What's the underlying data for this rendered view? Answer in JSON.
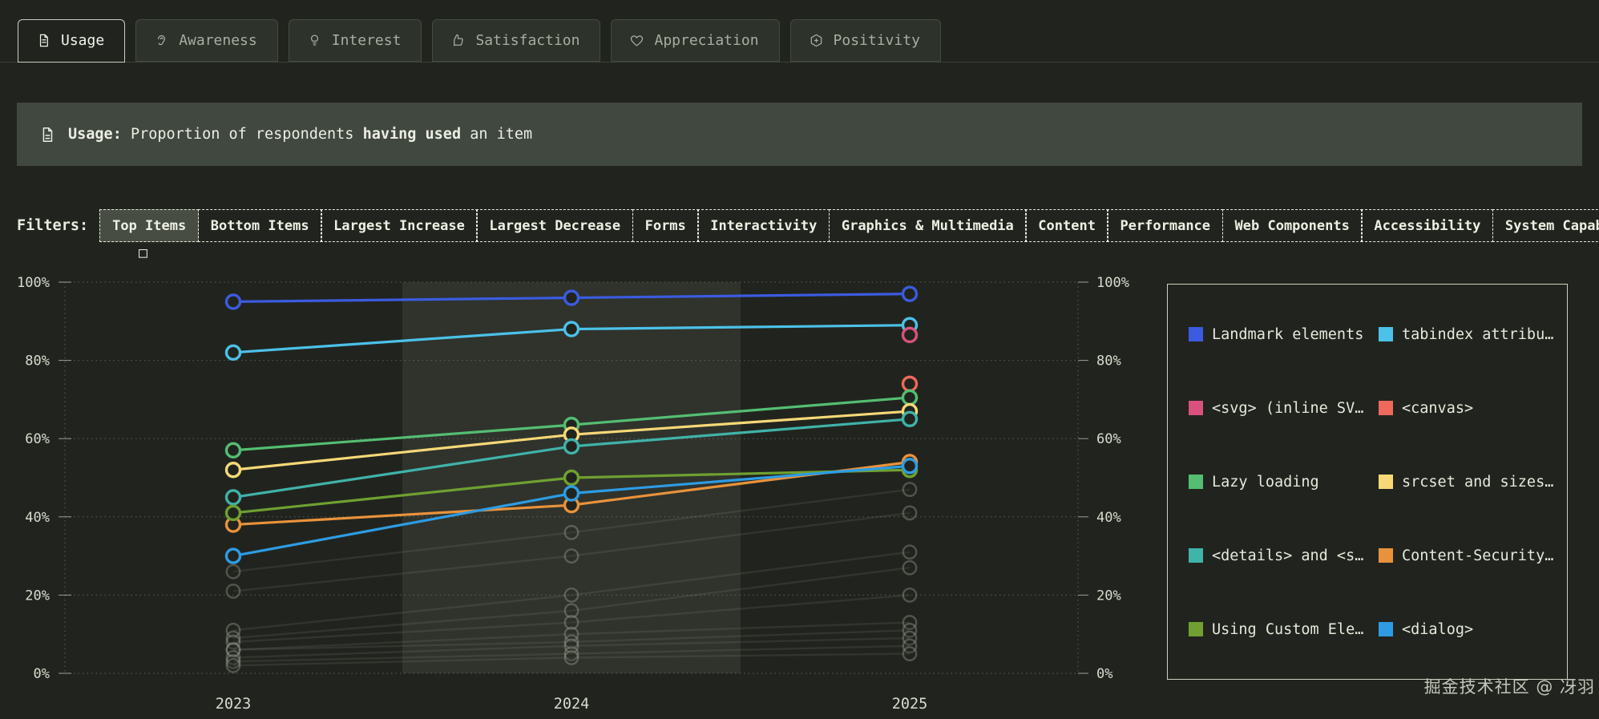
{
  "tabs": {
    "items": [
      {
        "label": "Usage",
        "icon": "document-icon",
        "active": true
      },
      {
        "label": "Awareness",
        "icon": "ear-icon",
        "active": false
      },
      {
        "label": "Interest",
        "icon": "lightbulb-icon",
        "active": false
      },
      {
        "label": "Satisfaction",
        "icon": "thumbs-up-icon",
        "active": false
      },
      {
        "label": "Appreciation",
        "icon": "heart-icon",
        "active": false
      },
      {
        "label": "Positivity",
        "icon": "hexagon-plus-icon",
        "active": false
      }
    ]
  },
  "banner": {
    "title": "Usage:",
    "desc_pre": " Proportion of respondents ",
    "desc_bold": "having used",
    "desc_post": " an item"
  },
  "filters": {
    "label": "Filters:",
    "overflow_glyph": "□",
    "items": [
      {
        "label": "Top Items",
        "active": true
      },
      {
        "label": "Bottom Items",
        "active": false
      },
      {
        "label": "Largest Increase",
        "active": false
      },
      {
        "label": "Largest Decrease",
        "active": false
      },
      {
        "label": "Forms",
        "active": false
      },
      {
        "label": "Interactivity",
        "active": false
      },
      {
        "label": "Graphics & Multimedia",
        "active": false
      },
      {
        "label": "Content",
        "active": false
      },
      {
        "label": "Performance",
        "active": false
      },
      {
        "label": "Web Components",
        "active": false
      },
      {
        "label": "Accessibility",
        "active": false
      },
      {
        "label": "System Capabilities",
        "active": false
      }
    ]
  },
  "chart_data": {
    "type": "line",
    "x_labels": [
      "2023",
      "2024",
      "2025"
    ],
    "ylim": [
      0,
      100
    ],
    "ytick_step": 20,
    "ytick_labels": [
      "0%",
      "20%",
      "40%",
      "60%",
      "80%",
      "100%"
    ],
    "y_axis_sides": [
      "left",
      "right"
    ],
    "highlighted_column": "2024",
    "legend_position": "right",
    "series": [
      {
        "name": "Landmark elements",
        "color": "#3b5be0",
        "values": [
          95,
          96,
          97
        ]
      },
      {
        "name": "tabindex attribu…",
        "color": "#4cc1e9",
        "values": [
          82,
          88,
          89
        ]
      },
      {
        "name": "<svg> (inline SV…",
        "color": "#d9517e",
        "values": [
          null,
          null,
          86.5
        ]
      },
      {
        "name": "<canvas>",
        "color": "#ef685c",
        "values": [
          null,
          null,
          74
        ]
      },
      {
        "name": "Lazy loading",
        "color": "#54be72",
        "values": [
          57,
          63.5,
          70.5
        ]
      },
      {
        "name": "srcset and sizes…",
        "color": "#f6d877",
        "values": [
          52,
          61,
          67
        ]
      },
      {
        "name": "<details> and <s…",
        "color": "#40b3aa",
        "values": [
          45,
          58,
          65
        ]
      },
      {
        "name": "Content-Security…",
        "color": "#e9923b",
        "values": [
          38,
          43,
          54
        ]
      },
      {
        "name": "Using Custom Ele…",
        "color": "#6fa031",
        "values": [
          41,
          50,
          52
        ]
      },
      {
        "name": "<dialog>",
        "color": "#2d9ce4",
        "values": [
          30,
          46,
          53
        ]
      }
    ],
    "faded_series": [
      {
        "values": [
          26,
          36,
          47
        ]
      },
      {
        "values": [
          21,
          30,
          41
        ]
      },
      {
        "values": [
          11,
          20,
          31
        ]
      },
      {
        "values": [
          9,
          16,
          27
        ]
      },
      {
        "values": [
          8,
          13,
          20
        ]
      },
      {
        "values": [
          6,
          10,
          13
        ]
      },
      {
        "values": [
          6,
          8,
          11
        ]
      },
      {
        "values": [
          4,
          7,
          9
        ]
      },
      {
        "values": [
          3,
          5,
          7
        ]
      },
      {
        "values": [
          2,
          4,
          5
        ]
      }
    ]
  },
  "watermark": "掘金技术社区 @ 冴羽"
}
